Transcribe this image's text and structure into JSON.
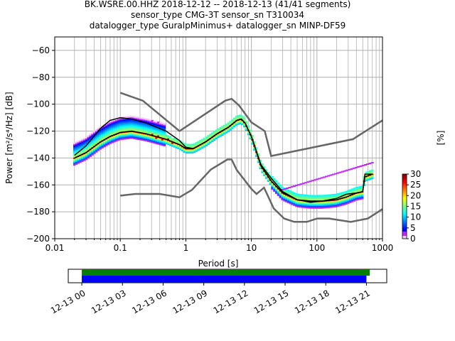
{
  "chart_data": {
    "type": "heatmap",
    "title_lines": [
      "BK.WSRE.00.HHZ   2018-12-12 -- 2018-12-13  (41/41 segments)",
      "sensor_type CMG-3T sensor_sn T310034",
      "datalogger_type GuralpMinimus+ datalogger_sn MINP-DF59"
    ],
    "xlabel": "Period [s]",
    "ylabel": "Power [m²/s⁴/Hz] [dB]",
    "xscale": "log",
    "xlim": [
      0.01,
      1000
    ],
    "ylim": [
      -200,
      -50
    ],
    "x_ticks": [
      0.01,
      0.1,
      1,
      10,
      100,
      1000
    ],
    "x_tick_labels": [
      "0.01",
      "0.1",
      "1",
      "10",
      "100",
      "1000"
    ],
    "y_ticks": [
      -200,
      -180,
      -160,
      -140,
      -120,
      -100,
      -80,
      -60
    ],
    "y_tick_labels": [
      "−200",
      "−180",
      "−160",
      "−140",
      "−120",
      "−100",
      "−80",
      "−60"
    ],
    "grid": true,
    "noise_models": {
      "high": [
        [
          0.1,
          -91.5
        ],
        [
          0.22,
          -97.4
        ],
        [
          0.8,
          -120
        ],
        [
          4,
          -97.4
        ],
        [
          5,
          -96
        ],
        [
          6.5,
          -101
        ],
        [
          10,
          -113.5
        ],
        [
          16,
          -120
        ],
        [
          20,
          -138.5
        ],
        [
          354.8,
          -126
        ],
        [
          1000,
          -112
        ]
      ],
      "low": [
        [
          0.1,
          -168
        ],
        [
          0.17,
          -166.7
        ],
        [
          0.4,
          -166.7
        ],
        [
          0.8,
          -169.2
        ],
        [
          1.24,
          -163.7
        ],
        [
          2.4,
          -148.6
        ],
        [
          4.3,
          -141.1
        ],
        [
          5.0,
          -141.1
        ],
        [
          6.0,
          -149
        ],
        [
          10,
          -163
        ],
        [
          12,
          -166.7
        ],
        [
          15.6,
          -162
        ],
        [
          21.9,
          -177.5
        ],
        [
          31.6,
          -185
        ],
        [
          45,
          -187.5
        ],
        [
          70,
          -187.5
        ],
        [
          101,
          -185
        ],
        [
          154,
          -185
        ],
        [
          328,
          -187.5
        ],
        [
          600,
          -185
        ],
        [
          1000,
          -178
        ]
      ]
    },
    "mean_curve": [
      [
        0.02,
        -138
      ],
      [
        0.03,
        -131
      ],
      [
        0.05,
        -118
      ],
      [
        0.07,
        -112
      ],
      [
        0.1,
        -110
      ],
      [
        0.15,
        -111
      ],
      [
        0.25,
        -114
      ],
      [
        0.5,
        -120
      ],
      [
        0.8,
        -127
      ],
      [
        1,
        -132
      ],
      [
        1.3,
        -133
      ],
      [
        2,
        -128
      ],
      [
        3,
        -122
      ],
      [
        4.5,
        -117
      ],
      [
        6,
        -112
      ],
      [
        7,
        -111
      ],
      [
        8,
        -114
      ],
      [
        10,
        -124
      ],
      [
        14,
        -145
      ],
      [
        20,
        -155
      ],
      [
        30,
        -165
      ],
      [
        50,
        -171
      ],
      [
        80,
        -173
      ],
      [
        120,
        -172
      ],
      [
        200,
        -170
      ],
      [
        280,
        -167
      ],
      [
        400,
        -166
      ],
      [
        500,
        -165
      ],
      [
        540,
        -152
      ],
      [
        700,
        -152
      ]
    ],
    "mode_curve": [
      [
        0.02,
        -140
      ],
      [
        0.03,
        -136
      ],
      [
        0.05,
        -128
      ],
      [
        0.07,
        -124
      ],
      [
        0.1,
        -121
      ],
      [
        0.15,
        -120
      ],
      [
        0.25,
        -122
      ],
      [
        0.5,
        -126
      ],
      [
        0.8,
        -130
      ],
      [
        1,
        -133
      ],
      [
        1.3,
        -133
      ],
      [
        2,
        -128
      ],
      [
        3,
        -122
      ],
      [
        4.5,
        -117
      ],
      [
        6,
        -112
      ],
      [
        7,
        -111
      ],
      [
        8,
        -114
      ],
      [
        10,
        -124
      ],
      [
        14,
        -146
      ],
      [
        20,
        -157
      ],
      [
        30,
        -166
      ],
      [
        50,
        -171
      ],
      [
        80,
        -172
      ],
      [
        120,
        -172
      ],
      [
        200,
        -171
      ],
      [
        280,
        -169
      ],
      [
        400,
        -166
      ],
      [
        500,
        -165
      ],
      [
        540,
        -154
      ],
      [
        700,
        -152
      ]
    ],
    "colorbar": {
      "label": "[%]",
      "ticks": [
        0,
        5,
        10,
        15,
        20,
        25,
        30
      ],
      "range": [
        0,
        30
      ]
    },
    "coverage": {
      "time_ticks": [
        "12-13 00",
        "12-13 03",
        "12-13 06",
        "12-13 09",
        "12-13 12",
        "12-13 15",
        "12-13 18",
        "12-13 21"
      ],
      "range_hours": [
        -1,
        22.5
      ],
      "green_bar_hours": [
        0,
        21.25
      ],
      "blue_bar_hours": [
        0,
        21
      ]
    }
  }
}
